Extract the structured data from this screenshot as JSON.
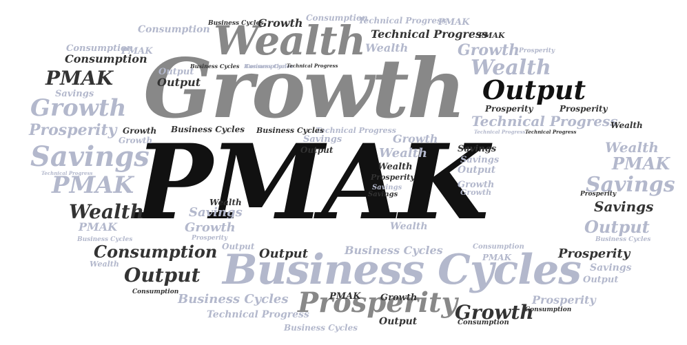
{
  "palette": {
    "black": "#111111",
    "dark": "#333333",
    "gray": "#888888",
    "light_blue_gray": "#b3b8cc"
  },
  "words": [
    {
      "text": "PMAK"
    },
    {
      "text": "Growth"
    },
    {
      "text": "Wealth"
    },
    {
      "text": "Business Cycles"
    },
    {
      "text": "Prosperity"
    },
    {
      "text": "Output"
    },
    {
      "text": "Wealth"
    },
    {
      "text": "Growth"
    },
    {
      "text": "Savings"
    },
    {
      "text": "PMAK"
    },
    {
      "text": "Prosperity"
    },
    {
      "text": "PMAK"
    },
    {
      "text": "Savings"
    },
    {
      "text": "Consumption"
    },
    {
      "text": "Output"
    },
    {
      "text": "Wealth"
    },
    {
      "text": "Technical Progress"
    },
    {
      "text": "Wealth"
    },
    {
      "text": "Consumption"
    },
    {
      "text": "Technical Progress"
    },
    {
      "text": "Growth"
    },
    {
      "text": "Output"
    },
    {
      "text": "Business Cycles"
    },
    {
      "text": "Consumption"
    },
    {
      "text": "Wealth"
    },
    {
      "text": "PMAK"
    },
    {
      "text": "Savings"
    },
    {
      "text": "Output"
    },
    {
      "text": "Growth"
    },
    {
      "text": "Prosperity"
    },
    {
      "text": "Business Cycles"
    },
    {
      "text": "Output"
    },
    {
      "text": "Prosperity"
    },
    {
      "text": "PMAK"
    },
    {
      "text": "Consumption"
    },
    {
      "text": "Growth"
    },
    {
      "text": "Technical Progress"
    },
    {
      "text": "Wealth"
    },
    {
      "text": "Savings"
    },
    {
      "text": "PMAK"
    },
    {
      "text": "Growth"
    },
    {
      "text": "Business Cycles"
    },
    {
      "text": "Business Cycles"
    },
    {
      "text": "Output"
    },
    {
      "text": "Growth"
    },
    {
      "text": "Wealth"
    },
    {
      "text": "Savings"
    },
    {
      "text": "Output"
    },
    {
      "text": "Growth"
    },
    {
      "text": "Wealth"
    },
    {
      "text": "Prosperity"
    },
    {
      "text": "Prosperity"
    },
    {
      "text": "Output"
    },
    {
      "text": "Savings"
    },
    {
      "text": "Prosperity"
    },
    {
      "text": "PMAK"
    },
    {
      "text": "Growth"
    },
    {
      "text": "Prosperity"
    },
    {
      "text": "Consumption"
    },
    {
      "text": "Business Cycles"
    },
    {
      "text": "PMAK"
    },
    {
      "text": "Consumption"
    },
    {
      "text": "Technical Progress"
    },
    {
      "text": "Business Cycles"
    },
    {
      "text": "Output"
    },
    {
      "text": "Consumption"
    },
    {
      "text": "Growth"
    },
    {
      "text": "PMAK"
    },
    {
      "text": "Consumption"
    },
    {
      "text": "Technical Progress"
    },
    {
      "text": "Technical Progress"
    },
    {
      "text": "PMAK"
    },
    {
      "text": "Growth"
    },
    {
      "text": "Business Cycles"
    },
    {
      "text": "Business Cycles"
    },
    {
      "text": "Technical Progress"
    },
    {
      "text": "Technical Progress"
    },
    {
      "text": "Growth"
    },
    {
      "text": "Savings"
    },
    {
      "text": "Savings"
    },
    {
      "text": "Savings"
    },
    {
      "text": "Wealth"
    },
    {
      "text": "Output"
    },
    {
      "text": "Savings"
    },
    {
      "text": "Prosperity"
    },
    {
      "text": "Output"
    },
    {
      "text": "Technical Progress"
    },
    {
      "text": "Business Cycles"
    },
    {
      "text": "Prosperity"
    },
    {
      "text": "Wealth"
    },
    {
      "text": "Consumption"
    },
    {
      "text": "Consumption"
    },
    {
      "text": "Business Cycles"
    },
    {
      "text": "Savings"
    },
    {
      "text": "Wealth"
    }
  ]
}
